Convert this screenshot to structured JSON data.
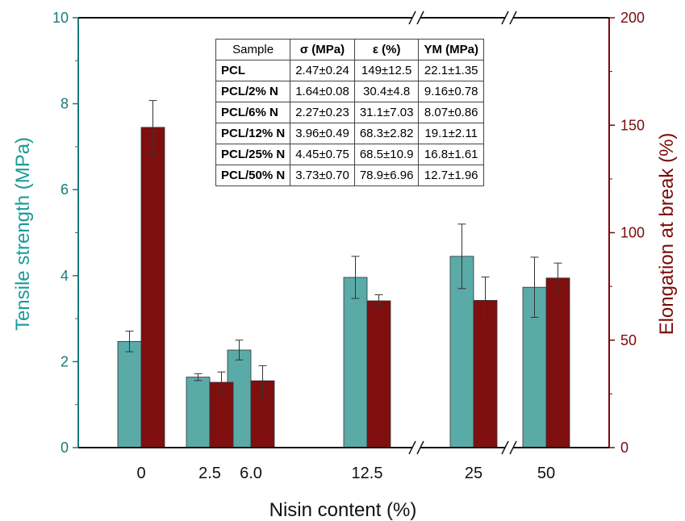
{
  "colors": {
    "tensile": "#5aaaa8",
    "elongation": "#7f0f0f",
    "left_axis": "#1a7a7a",
    "right_axis": "#7b0a0a"
  },
  "chart_data": {
    "type": "bar",
    "categories": [
      "0",
      "2.5",
      "6.0",
      "12.5",
      "25",
      "50"
    ],
    "xlabel": "Nisin content (%)",
    "ylabel_left": "Tensile strength (MPa)",
    "ylabel_right": "Elongation at break (%)",
    "ylim_left": [
      0,
      10
    ],
    "ylim_right": [
      0,
      200
    ],
    "yticks_left": [
      0,
      2,
      4,
      6,
      8,
      10
    ],
    "yticks_right": [
      0,
      50,
      100,
      150,
      200
    ],
    "axis_breaks": [
      "between 12.5 and 25",
      "between 25 and 50"
    ],
    "series": [
      {
        "axis": "left",
        "values": [
          2.47,
          1.64,
          2.27,
          3.96,
          4.45,
          3.73
        ],
        "errors": [
          0.24,
          0.08,
          0.23,
          0.49,
          0.75,
          0.7
        ]
      },
      {
        "axis": "right",
        "values": [
          149,
          30.4,
          31.1,
          68.3,
          68.5,
          78.9
        ],
        "errors": [
          12.5,
          4.8,
          7.03,
          2.82,
          10.9,
          6.96
        ]
      }
    ],
    "table": {
      "headers": [
        "Sample",
        "σ (MPa)",
        "ε (%)",
        "YM (MPa)"
      ],
      "rows": [
        [
          "PCL",
          "2.47±0.24",
          "149±12.5",
          "22.1±1.35"
        ],
        [
          "PCL/2% N",
          "1.64±0.08",
          "30.4±4.8",
          "9.16±0.78"
        ],
        [
          "PCL/6% N",
          "2.27±0.23",
          "31.1±7.03",
          "8.07±0.86"
        ],
        [
          "PCL/12% N",
          "3.96±0.49",
          "68.3±2.82",
          "19.1±2.11"
        ],
        [
          "PCL/25% N",
          "4.45±0.75",
          "68.5±10.9",
          "16.8±1.61"
        ],
        [
          "PCL/50% N",
          "3.73±0.70",
          "78.9±6.96",
          "12.7±1.96"
        ]
      ]
    }
  }
}
